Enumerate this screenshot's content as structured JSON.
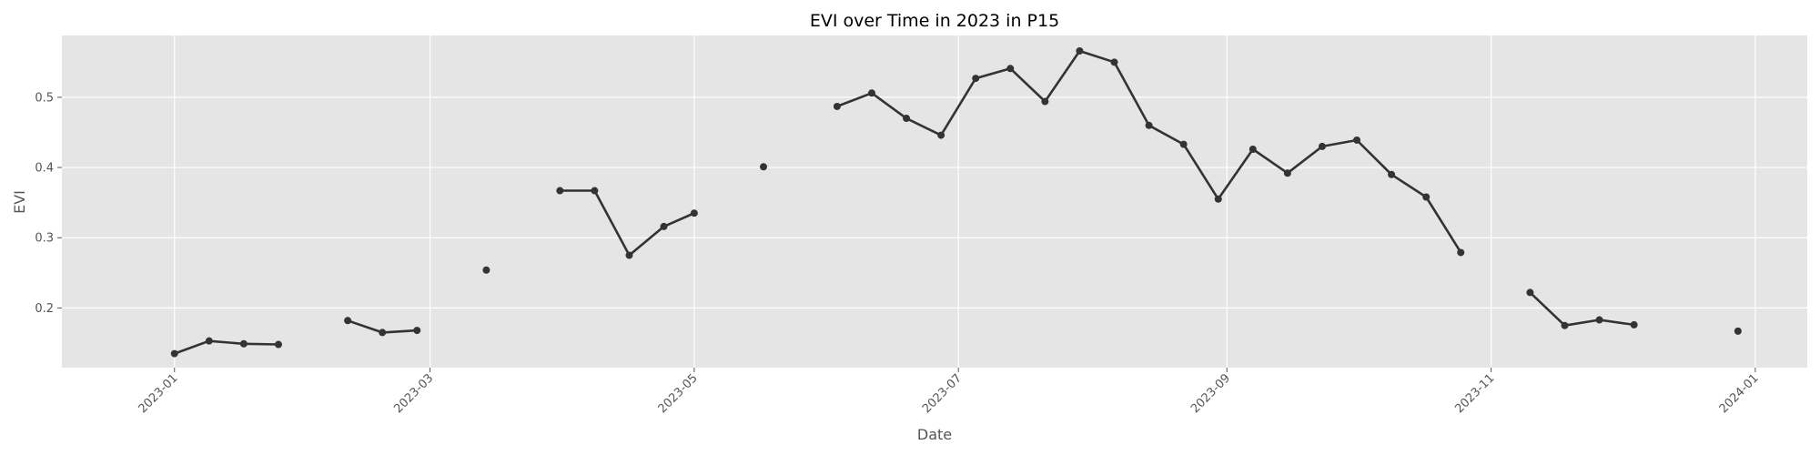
{
  "chart_data": {
    "type": "line",
    "title": "EVI over Time in 2023 in P15",
    "xlabel": "Date",
    "ylabel": "EVI",
    "x_range": [
      "2022-12-06",
      "2024-01-13"
    ],
    "ylim": [
      0.115,
      0.588
    ],
    "grid": true,
    "background": "#e5e5e5",
    "line_color": "#333333",
    "x_ticks": [
      "2023-01",
      "2023-03",
      "2023-05",
      "2023-07",
      "2023-09",
      "2023-11",
      "2024-01"
    ],
    "y_ticks": [
      "0.2",
      "0.3",
      "0.4",
      "0.5"
    ],
    "segments": [
      [
        {
          "x": "2023-01-01",
          "y": 0.135
        },
        {
          "x": "2023-01-09",
          "y": 0.153
        },
        {
          "x": "2023-01-17",
          "y": 0.149
        },
        {
          "x": "2023-01-25",
          "y": 0.148
        }
      ],
      [
        {
          "x": "2023-02-10",
          "y": 0.182
        },
        {
          "x": "2023-02-18",
          "y": 0.165
        },
        {
          "x": "2023-02-26",
          "y": 0.168
        }
      ],
      [
        {
          "x": "2023-03-14",
          "y": 0.254
        }
      ],
      [
        {
          "x": "2023-03-31",
          "y": 0.367
        },
        {
          "x": "2023-04-08",
          "y": 0.367
        },
        {
          "x": "2023-04-16",
          "y": 0.275
        },
        {
          "x": "2023-04-24",
          "y": 0.316
        },
        {
          "x": "2023-05-01",
          "y": 0.335
        }
      ],
      [
        {
          "x": "2023-05-17",
          "y": 0.401
        }
      ],
      [
        {
          "x": "2023-06-03",
          "y": 0.487
        },
        {
          "x": "2023-06-11",
          "y": 0.506
        },
        {
          "x": "2023-06-19",
          "y": 0.47
        },
        {
          "x": "2023-06-27",
          "y": 0.446
        },
        {
          "x": "2023-07-05",
          "y": 0.527
        },
        {
          "x": "2023-07-13",
          "y": 0.541
        },
        {
          "x": "2023-07-21",
          "y": 0.494
        },
        {
          "x": "2023-07-29",
          "y": 0.566
        },
        {
          "x": "2023-08-06",
          "y": 0.55
        },
        {
          "x": "2023-08-14",
          "y": 0.46
        },
        {
          "x": "2023-08-22",
          "y": 0.433
        },
        {
          "x": "2023-08-30",
          "y": 0.355
        },
        {
          "x": "2023-09-07",
          "y": 0.426
        },
        {
          "x": "2023-09-15",
          "y": 0.392
        },
        {
          "x": "2023-09-23",
          "y": 0.43
        },
        {
          "x": "2023-10-01",
          "y": 0.439
        },
        {
          "x": "2023-10-09",
          "y": 0.39
        },
        {
          "x": "2023-10-17",
          "y": 0.358
        },
        {
          "x": "2023-10-25",
          "y": 0.279
        }
      ],
      [
        {
          "x": "2023-11-10",
          "y": 0.222
        },
        {
          "x": "2023-11-18",
          "y": 0.175
        },
        {
          "x": "2023-11-26",
          "y": 0.183
        },
        {
          "x": "2023-12-04",
          "y": 0.176
        }
      ],
      [
        {
          "x": "2023-12-28",
          "y": 0.167
        }
      ]
    ]
  }
}
